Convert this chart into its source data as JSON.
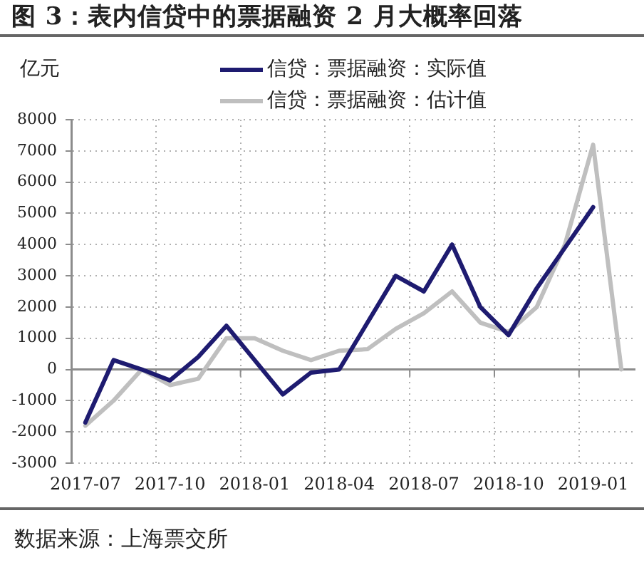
{
  "chart_data": {
    "type": "line",
    "title": "图 3：表内信贷中的票据融资 2 月大概率回落",
    "ylabel": "亿元",
    "categories": [
      "2017-07",
      null,
      null,
      "2017-10",
      null,
      null,
      "2018-01",
      null,
      null,
      "2018-04",
      null,
      null,
      "2018-07",
      null,
      null,
      "2018-10",
      null,
      null,
      "2019-01",
      null
    ],
    "series": [
      {
        "name": "信贷：票据融资：实际值",
        "color": "#1e1b70",
        "values": [
          -1700,
          300,
          0,
          -350,
          400,
          1400,
          300,
          -800,
          -100,
          0,
          1500,
          3000,
          2500,
          4000,
          2000,
          1100,
          2600,
          3900,
          5200,
          null
        ]
      },
      {
        "name": "信贷：票据融资：估计值",
        "color": "#bfbfbf",
        "values": [
          -1800,
          -1000,
          0,
          -500,
          -300,
          1000,
          1000,
          600,
          300,
          600,
          650,
          1300,
          1800,
          2500,
          1500,
          1200,
          2000,
          4000,
          7200,
          0
        ]
      }
    ],
    "ylim": [
      -3000,
      8000
    ],
    "yticks": [
      -3000,
      -2000,
      -1000,
      0,
      1000,
      2000,
      3000,
      4000,
      5000,
      6000,
      7000,
      8000
    ],
    "grid": true,
    "legend": "top",
    "marker": "none",
    "line_style": "solid",
    "annotations": [
      "数据来源：上海票交所"
    ]
  }
}
